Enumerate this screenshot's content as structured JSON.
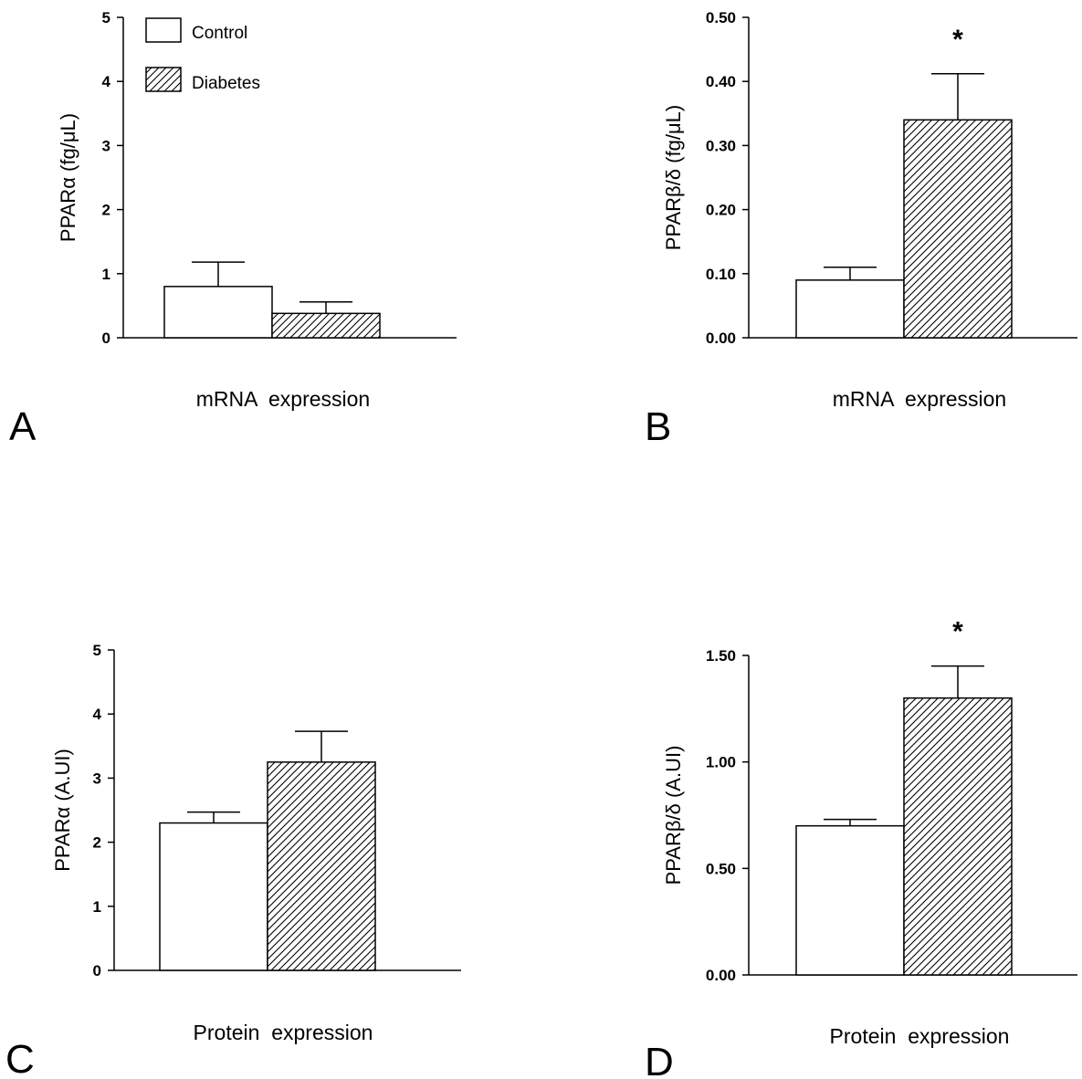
{
  "legend": [
    {
      "label": "Control",
      "pattern": "solid-white"
    },
    {
      "label": "Diabetes",
      "pattern": "diagonal-hatch"
    }
  ],
  "chart_data": [
    {
      "panel": "A",
      "type": "bar",
      "categories": [
        "Control",
        "Diabetes"
      ],
      "values": [
        0.8,
        0.38
      ],
      "errors": [
        0.38,
        0.18
      ],
      "ylabel": "PPARα (fg/μL)",
      "xlabel": "mRNA  expression",
      "ylim": [
        0,
        5
      ],
      "yticks": [
        0,
        1,
        2,
        3,
        4,
        5
      ],
      "ytick_labels": [
        "0",
        "1",
        "2",
        "3",
        "4",
        "5"
      ],
      "significance": [
        "",
        ""
      ],
      "grid": false
    },
    {
      "panel": "B",
      "type": "bar",
      "categories": [
        "Control",
        "Diabetes"
      ],
      "values": [
        0.09,
        0.34
      ],
      "errors": [
        0.02,
        0.072
      ],
      "ylabel": "PPARβ/δ (fg/μL)",
      "xlabel": "mRNA  expression",
      "ylim": [
        0,
        0.5
      ],
      "yticks": [
        0,
        0.1,
        0.2,
        0.3,
        0.4,
        0.5
      ],
      "ytick_labels": [
        "0.00",
        "0.10",
        "0.20",
        "0.30",
        "0.40",
        "0.50"
      ],
      "significance": [
        "",
        "*"
      ],
      "grid": false
    },
    {
      "panel": "C",
      "type": "bar",
      "categories": [
        "Control",
        "Diabetes"
      ],
      "values": [
        2.3,
        3.25
      ],
      "errors": [
        0.17,
        0.48
      ],
      "ylabel": "PPARα (A.UI)",
      "xlabel": "Protein  expression",
      "ylim": [
        0,
        5
      ],
      "yticks": [
        0,
        1,
        2,
        3,
        4,
        5
      ],
      "ytick_labels": [
        "0",
        "1",
        "2",
        "3",
        "4",
        "5"
      ],
      "significance": [
        "",
        ""
      ],
      "grid": false
    },
    {
      "panel": "D",
      "type": "bar",
      "categories": [
        "Control",
        "Diabetes"
      ],
      "values": [
        0.7,
        1.3
      ],
      "errors": [
        0.03,
        0.15
      ],
      "ylabel": "PPARβ/δ (A.UI)",
      "xlabel": "Protein  expression",
      "ylim": [
        0,
        1.5
      ],
      "yticks": [
        0,
        0.5,
        1.0,
        1.5
      ],
      "ytick_labels": [
        "0.00",
        "0.50",
        "1.00",
        "1.50"
      ],
      "significance": [
        "",
        "*"
      ],
      "grid": false
    }
  ]
}
